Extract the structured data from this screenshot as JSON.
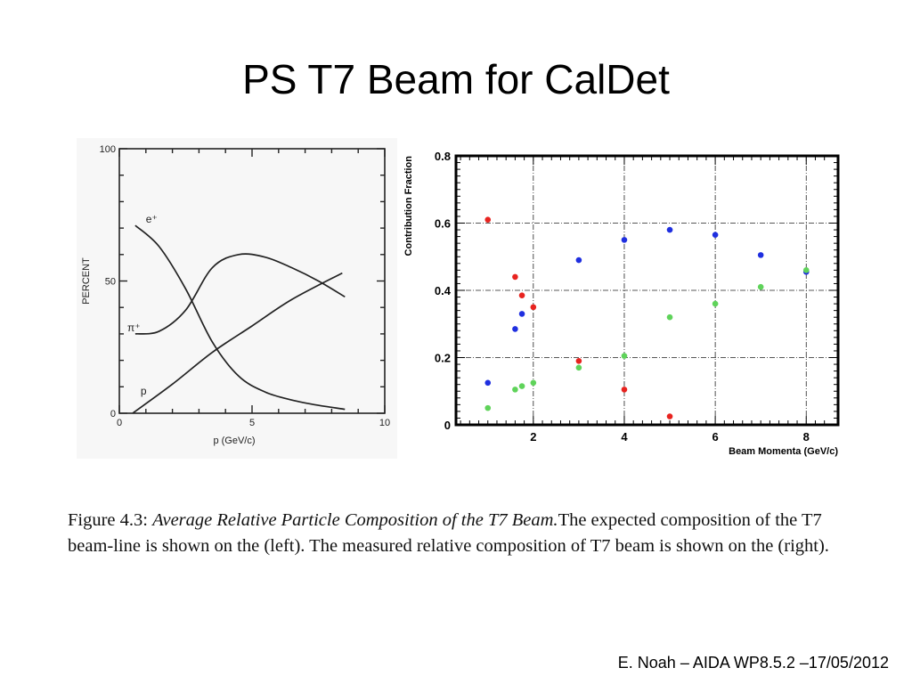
{
  "slide": {
    "title": "PS T7 Beam for CalDet",
    "footer": "E. Noah – AIDA WP8.5.2 –17/05/2012"
  },
  "caption": {
    "label": "Figure 4.3:",
    "title": "Average Relative Particle Composition of the T7 Beam.",
    "text": "The expected composition of the T7 beam-line is shown on the (left). The measured relative composition of T7 beam is shown on the (right)."
  },
  "chart_data": [
    {
      "type": "line",
      "xlabel": "p (GeV/c)",
      "ylabel": "PERCENT",
      "xlim": [
        0,
        10
      ],
      "ylim": [
        0,
        100
      ],
      "xticks": [
        0,
        5,
        10
      ],
      "yticks": [
        0,
        50,
        100
      ],
      "xtick_labels": [
        "0",
        "5",
        "10"
      ],
      "ytick_labels": [
        "0",
        "50",
        "100"
      ],
      "series": [
        {
          "name": "e⁺",
          "label_at": [
            1.0,
            72
          ],
          "x": [
            0.6,
            1.5,
            2.5,
            3.5,
            4.5,
            5.5,
            6.5,
            7.5,
            8.5
          ],
          "y": [
            71,
            63,
            47,
            27,
            14,
            8,
            5,
            3,
            1.5
          ]
        },
        {
          "name": "π⁺",
          "label_at": [
            0.3,
            31
          ],
          "x": [
            0.6,
            1.5,
            2.5,
            3.5,
            4.5,
            5.5,
            6.5,
            7.5,
            8.5
          ],
          "y": [
            30,
            31,
            39,
            55,
            60,
            59,
            55,
            50,
            44
          ]
        },
        {
          "name": "p",
          "label_at": [
            0.8,
            7
          ],
          "x": [
            0.5,
            2.0,
            3.5,
            5.0,
            6.5,
            8.4
          ],
          "y": [
            0,
            11,
            23,
            33,
            43,
            53
          ]
        }
      ],
      "grid": false
    },
    {
      "type": "scatter",
      "xlabel": "Beam Momenta (GeV/c)",
      "ylabel": "Contribution Fraction",
      "xlim": [
        0.3,
        8.7
      ],
      "ylim": [
        0,
        0.8
      ],
      "xticks": [
        2,
        4,
        6,
        8
      ],
      "yticks": [
        0,
        0.2,
        0.4,
        0.6,
        0.8
      ],
      "xtick_labels": [
        "2",
        "4",
        "6",
        "8"
      ],
      "ytick_labels": [
        "0",
        "0.2",
        "0.4",
        "0.6",
        "0.8"
      ],
      "grid": true,
      "colors": {
        "red": "#e8231f",
        "blue": "#1f2fe0",
        "green": "#5fd35a"
      },
      "series": [
        {
          "color": "#e8231f",
          "x": [
            1,
            1.6,
            1.75,
            2,
            3,
            4,
            5
          ],
          "y": [
            0.61,
            0.44,
            0.385,
            0.35,
            0.19,
            0.105,
            0.025
          ]
        },
        {
          "color": "#1f2fe0",
          "x": [
            1,
            1.6,
            1.75,
            3,
            4,
            5,
            6,
            7,
            8
          ],
          "y": [
            0.125,
            0.285,
            0.33,
            0.49,
            0.55,
            0.58,
            0.565,
            0.505,
            0.455
          ]
        },
        {
          "color": "#5fd35a",
          "x": [
            1,
            1.6,
            1.75,
            2,
            3,
            4,
            5,
            6,
            7,
            8
          ],
          "y": [
            0.05,
            0.105,
            0.115,
            0.125,
            0.17,
            0.205,
            0.32,
            0.36,
            0.41,
            0.46
          ]
        }
      ]
    }
  ]
}
